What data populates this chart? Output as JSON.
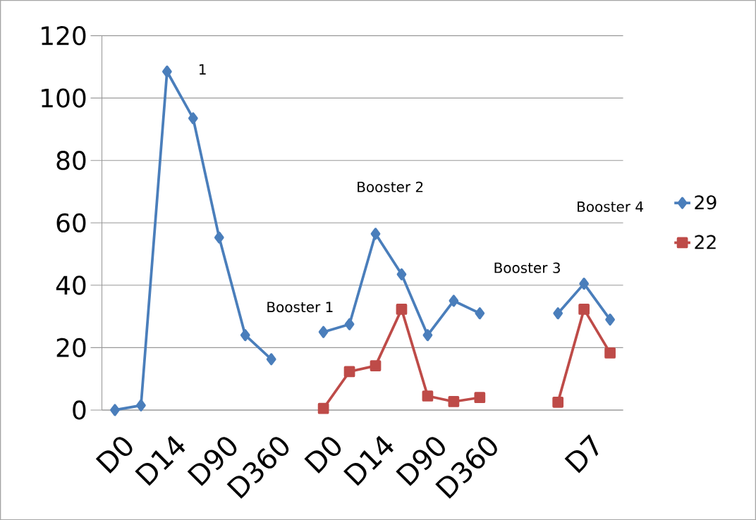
{
  "chart_data": {
    "type": "line",
    "categories": [
      "D0",
      null,
      "D14",
      null,
      "D90",
      null,
      "D360",
      null,
      "D0",
      null,
      "D14",
      null,
      "D90",
      null,
      "D360",
      null,
      null,
      null,
      "D7",
      null
    ],
    "series": [
      {
        "name": "29",
        "color": "#4a7ebb",
        "marker": "diamond",
        "values": [
          0,
          1.5,
          108.5,
          93.5,
          55.3,
          24,
          16.3,
          null,
          25,
          27.5,
          56.5,
          43.5,
          24,
          35,
          31,
          null,
          null,
          31,
          40.5,
          29
        ]
      },
      {
        "name": "22",
        "color": "#be4b48",
        "marker": "square",
        "values": [
          null,
          null,
          null,
          null,
          null,
          null,
          null,
          null,
          0.5,
          12.3,
          14.2,
          32.3,
          4.5,
          2.7,
          4,
          null,
          null,
          2.5,
          32.3,
          18.3
        ]
      }
    ],
    "ylim": [
      0,
      120
    ],
    "yticks": [
      0,
      20,
      40,
      60,
      80,
      100,
      120
    ],
    "grid": "y",
    "legend": "right",
    "line_style": "solid",
    "annotations": [
      "1",
      "Booster 1",
      "Booster 2",
      "Booster 3",
      "Booster 4"
    ]
  }
}
